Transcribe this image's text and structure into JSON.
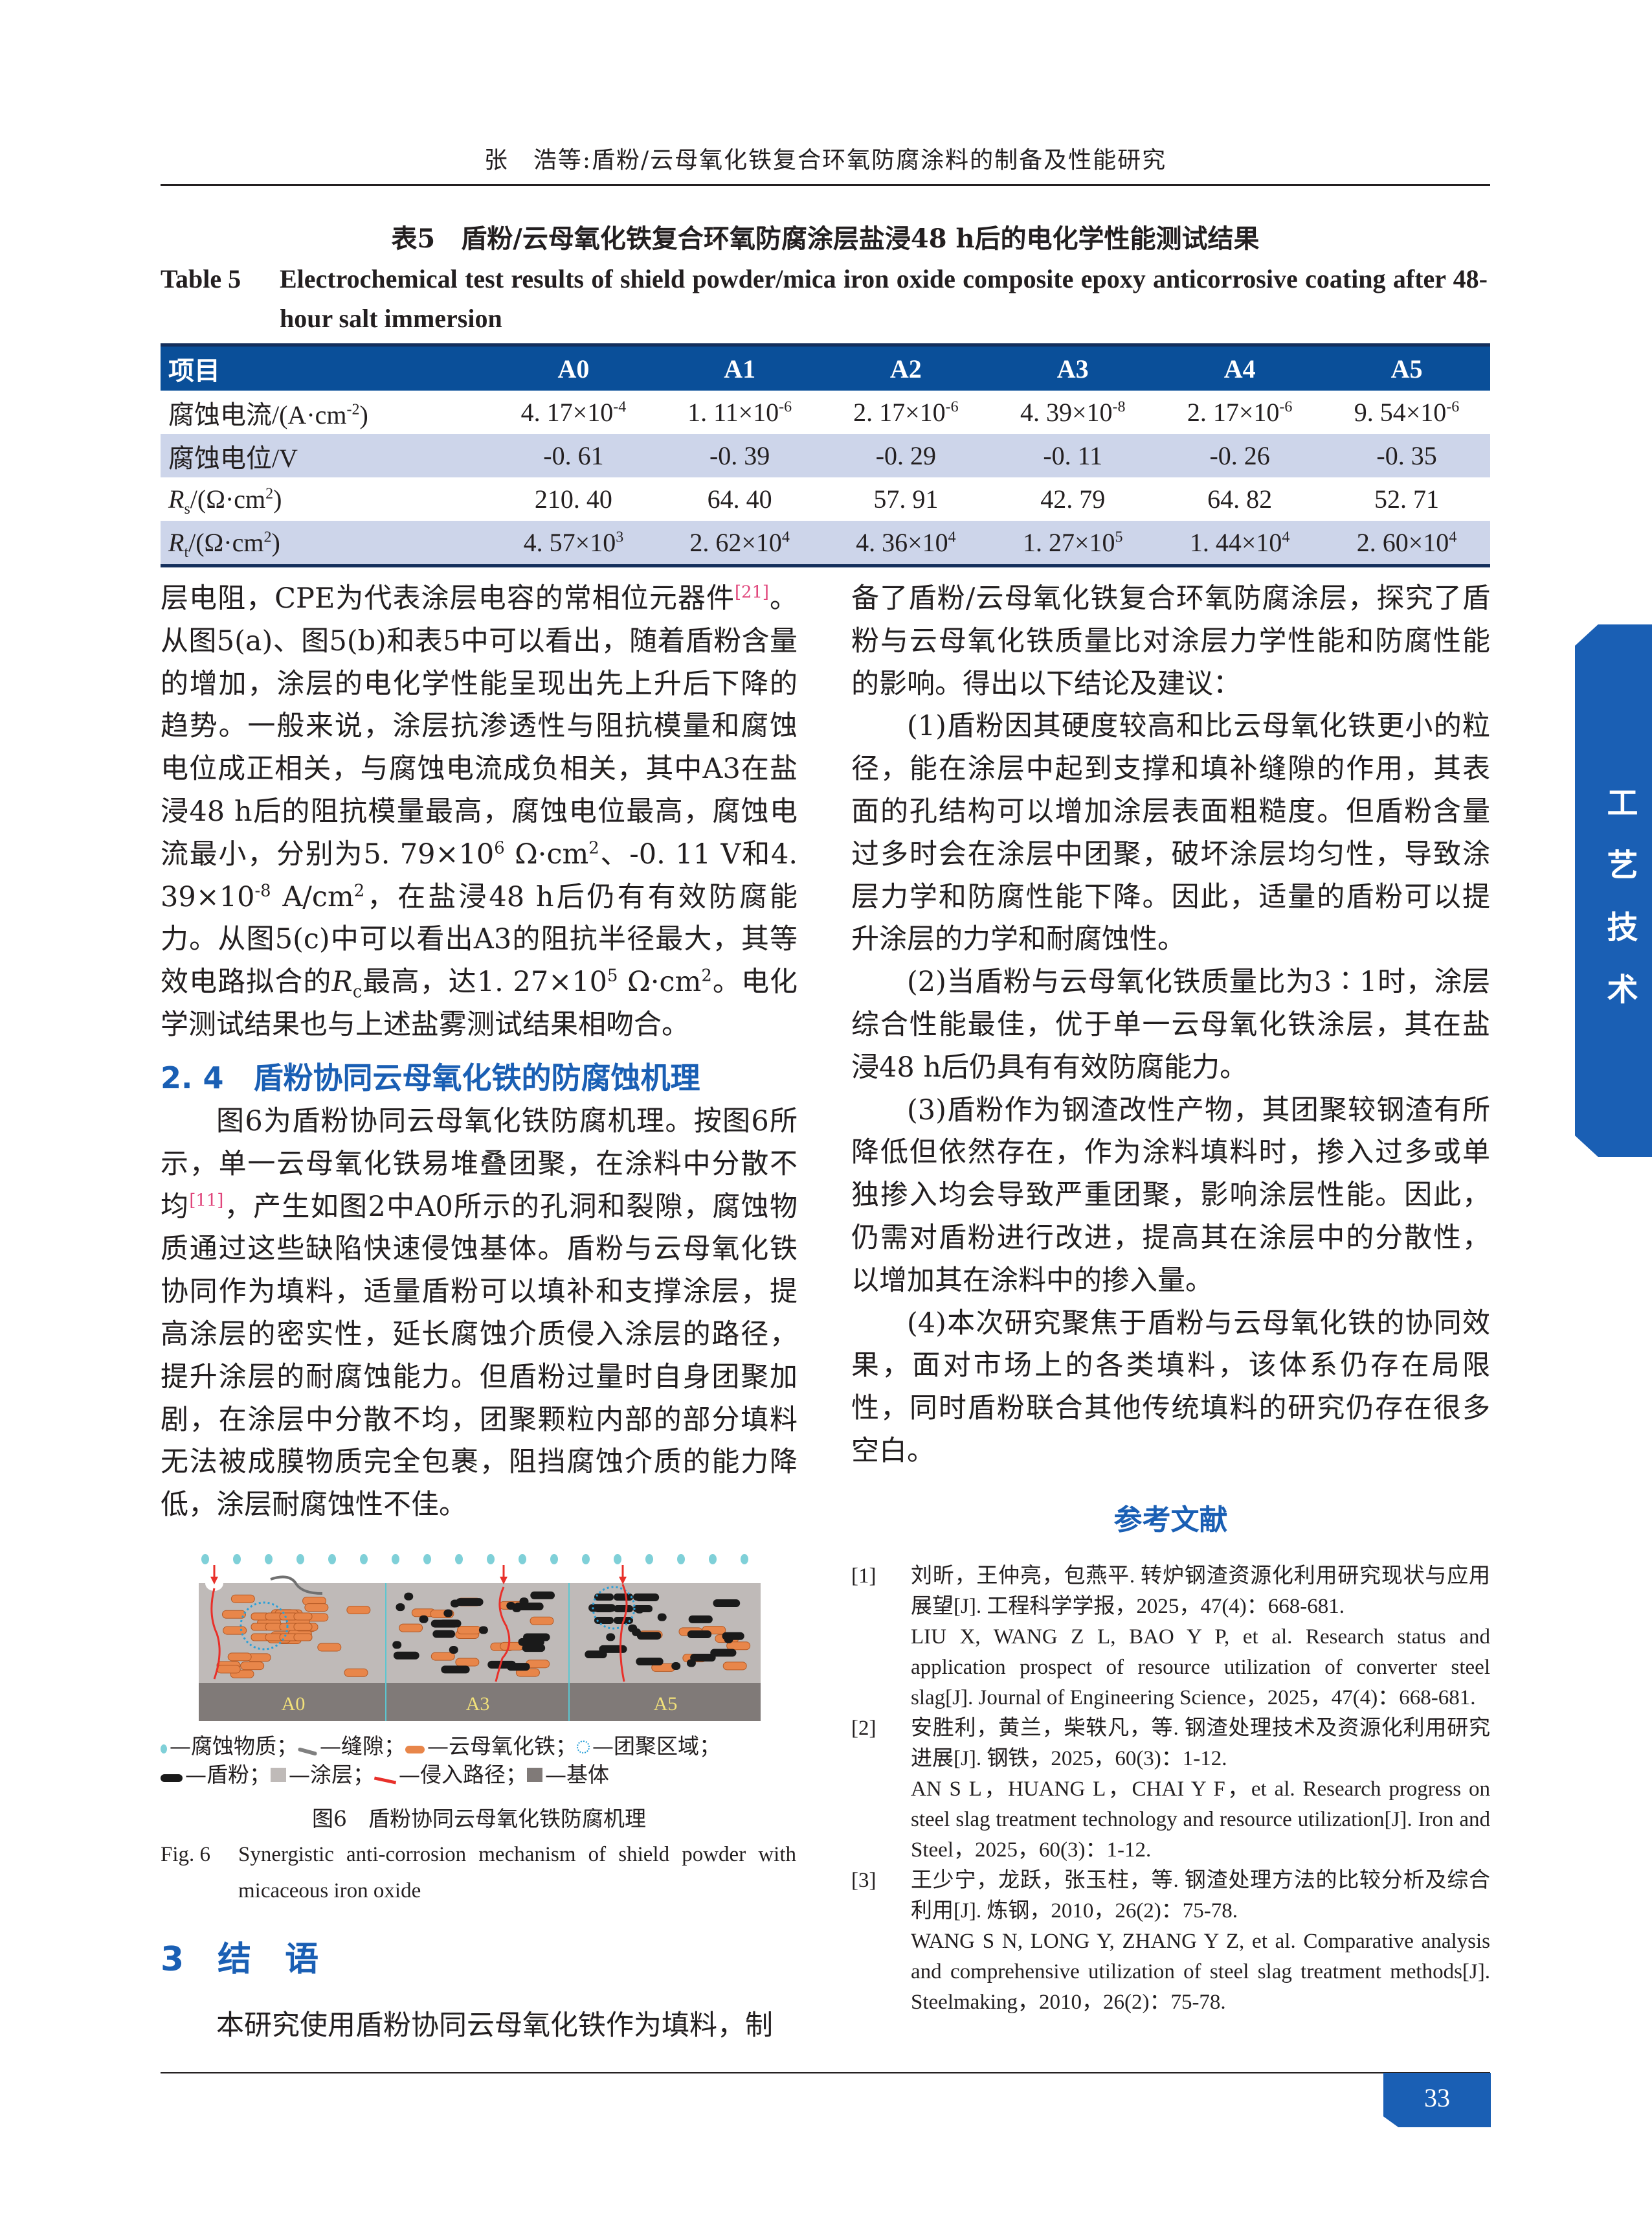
{
  "running_head": "张　浩等:盾粉/云母氧化铁复合环氧防腐涂料的制备及性能研究",
  "table5": {
    "caption_cn": "表5　盾粉/云母氧化铁复合环氧防腐涂层盐浸48 h后的电化学性能测试结果",
    "caption_en_label": "Table 5",
    "caption_en": "Electrochemical test results of shield powder/mica iron oxide composite epoxy anticorrosive coating after 48-hour salt immersion",
    "headers": [
      "项目",
      "A0",
      "A1",
      "A2",
      "A3",
      "A4",
      "A5"
    ],
    "rows": [
      {
        "label": "腐蚀电流/(A·cm",
        "label_sup": "-2",
        "label_tail": ")",
        "cells": [
          [
            "4. 17×10",
            "-4"
          ],
          [
            "1. 11×10",
            "-6"
          ],
          [
            "2. 17×10",
            "-6"
          ],
          [
            "4. 39×10",
            "-8"
          ],
          [
            "2. 17×10",
            "-6"
          ],
          [
            "9. 54×10",
            "-6"
          ]
        ]
      },
      {
        "label": "腐蚀电位/V",
        "cells": [
          [
            "-0. 61"
          ],
          [
            "-0. 39"
          ],
          [
            "-0. 29"
          ],
          [
            "-0. 11"
          ],
          [
            "-0. 26"
          ],
          [
            "-0. 35"
          ]
        ]
      },
      {
        "label": "R",
        "label_sub": "s",
        "label_mid": "/(Ω·cm",
        "label_sup": "2",
        "label_tail": ")",
        "cells": [
          [
            "210. 40"
          ],
          [
            "64. 40"
          ],
          [
            "57. 91"
          ],
          [
            "42. 79"
          ],
          [
            "64. 82"
          ],
          [
            "52. 71"
          ]
        ]
      },
      {
        "label": "R",
        "label_sub": "t",
        "label_mid": "/(Ω·cm",
        "label_sup": "2",
        "label_tail": ")",
        "cells": [
          [
            "4. 57×10",
            "3"
          ],
          [
            "2. 62×10",
            "4"
          ],
          [
            "4. 36×10",
            "4"
          ],
          [
            "1. 27×10",
            "5"
          ],
          [
            "1. 44×10",
            "4"
          ],
          [
            "2. 60×10",
            "4"
          ]
        ]
      }
    ]
  },
  "left_para1": [
    {
      "t": "层电阻，CPE为代表涂层电容的常相位元器件"
    },
    {
      "t": "[21]",
      "sup": true,
      "ref": true
    },
    {
      "t": "。从图5(a)、图5(b)和表5中可以看出，随着盾粉含量的增加，涂层的电化学性能呈现出先上升后下降的趋势。一般来说，涂层抗渗透性与阻抗模量和腐蚀电位成正相关，与腐蚀电流成负相关，其中A3在盐浸48 h后的阻抗模量最高，腐蚀电位最高，腐蚀电流最小，分别为5. 79×10"
    },
    {
      "t": "6",
      "sup": true
    },
    {
      "t": " Ω·cm"
    },
    {
      "t": "2",
      "sup": true
    },
    {
      "t": "、-0. 11 V和4. 39×10"
    },
    {
      "t": "-8",
      "sup": true
    },
    {
      "t": " A/cm"
    },
    {
      "t": "2",
      "sup": true
    },
    {
      "t": "，在盐浸48 h后仍有有效防腐能力。从图5(c)中可以看出A3的阻抗半径最大，其等效电路拟合的"
    },
    {
      "t": "R",
      "i": true
    },
    {
      "t": "c",
      "sub": true
    },
    {
      "t": "最高，达1. 27×10"
    },
    {
      "t": "5",
      "sup": true
    },
    {
      "t": " Ω·cm"
    },
    {
      "t": "2",
      "sup": true
    },
    {
      "t": "。电化学测试结果也与上述盐雾测试结果相吻合。"
    }
  ],
  "section_2_4": {
    "heading": "2. 4　盾粉协同云母氧化铁的防腐蚀机理",
    "para": [
      {
        "t": "图6为盾粉协同云母氧化铁防腐机理。按图6所示，单一云母氧化铁易堆叠团聚，在涂料中分散不均"
      },
      {
        "t": "[11]",
        "sup": true,
        "ref": true
      },
      {
        "t": "，产生如图2中A0所示的孔洞和裂隙，腐蚀物质通过这些缺陷快速侵蚀基体。盾粉与云母氧化铁协同作为填料，适量盾粉可以填补和支撑涂层，提高涂层的密实性，延长腐蚀介质侵入涂层的路径，提升涂层的耐腐蚀能力。但盾粉过量时自身团聚加剧，在涂层中分散不均，团聚颗粒内部的部分填料无法被成膜物质完全包裹，阻挡腐蚀介质的能力降低，涂层耐腐蚀性不佳。"
      }
    ]
  },
  "figure6": {
    "panels": [
      "A0",
      "A3",
      "A5"
    ],
    "legend": [
      "—腐蚀物质；",
      "—缝隙；",
      "—云母氧化铁；",
      "—团聚区域；",
      "—盾粉；",
      "—涂层；",
      "—侵入路径；",
      "—基体"
    ],
    "caption_cn": "图6　盾粉协同云母氧化铁防腐机理",
    "caption_en_label": "Fig. 6",
    "caption_en": "Synergistic anti-corrosion mechanism of shield powder with micaceous iron oxide",
    "colors": {
      "coating": "#bfbab8",
      "substrate": "#807a78",
      "mica": "#e8864a",
      "shield": "#1a1a1a",
      "path": "#e8302a",
      "corrosive": "#7fd0d8",
      "panel_label": "#f3e27a"
    }
  },
  "section_3": {
    "heading": "3　结　语",
    "para": "本研究使用盾粉协同云母氧化铁作为填料，制"
  },
  "right_paras": [
    "备了盾粉/云母氧化铁复合环氧防腐涂层，探究了盾粉与云母氧化铁质量比对涂层力学性能和防腐性能的影响。得出以下结论及建议：",
    "(1)盾粉因其硬度较高和比云母氧化铁更小的粒径，能在涂层中起到支撑和填补缝隙的作用，其表面的孔结构可以增加涂层表面粗糙度。但盾粉含量过多时会在涂层中团聚，破坏涂层均匀性，导致涂层力学和防腐性能下降。因此，适量的盾粉可以提升涂层的力学和耐腐蚀性。",
    "(2)当盾粉与云母氧化铁质量比为3∶1时，涂层综合性能最佳，优于单一云母氧化铁涂层，其在盐浸48 h后仍具有有效防腐能力。",
    "(3)盾粉作为钢渣改性产物，其团聚较钢渣有所降低但依然存在，作为涂料填料时，掺入过多或单独掺入均会导致严重团聚，影响涂层性能。因此，仍需对盾粉进行改进，提高其在涂层中的分散性，以增加其在涂料中的掺入量。",
    "(4)本次研究聚焦于盾粉与云母氧化铁的协同效果，面对市场上的各类填料，该体系仍存在局限性，同时盾粉联合其他传统填料的研究仍存在很多空白。"
  ],
  "references": {
    "heading": "参考文献",
    "items": [
      {
        "num": "[1]",
        "cn": "刘昕，王仲亮，包燕平. 转炉钢渣资源化利用研究现状与应用展望[J]. 工程科学学报，2025，47(4)：668-681.",
        "en": "LIU X, WANG Z L, BAO Y P, et al. Research status and application prospect of resource utilization of converter steel slag[J]. Journal of Engineering Science，2025，47(4)：668-681."
      },
      {
        "num": "[2]",
        "cn": "安胜利，黄兰，柴轶凡，等. 钢渣处理技术及资源化利用研究进展[J]. 钢铁，2025，60(3)：1-12.",
        "en": "AN S L，HUANG L，CHAI Y F，et al. Research progress on steel slag treatment technology and resource utilization[J]. Iron and Steel，2025，60(3)：1-12."
      },
      {
        "num": "[3]",
        "cn": "王少宁，龙跃，张玉柱，等. 钢渣处理方法的比较分析及综合利用[J]. 炼钢，2010，26(2)：75-78.",
        "en": "WANG S N, LONG Y, ZHANG Y Z, et al. Comparative analysis and comprehensive utilization of steel slag treatment methods[J]. Steelmaking，2010，26(2)：75-78."
      }
    ]
  },
  "side_tab": [
    "工",
    "艺",
    "技",
    "术"
  ],
  "page_number": "33",
  "colors": {
    "accent": "#1a5fb4",
    "table_header": "#0a4f99",
    "table_stripe": "#cdd5ea"
  }
}
